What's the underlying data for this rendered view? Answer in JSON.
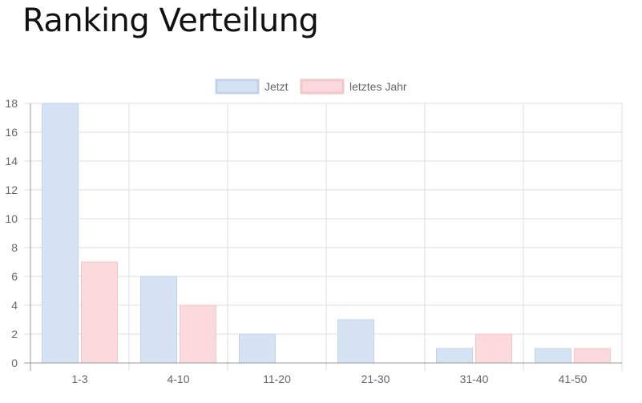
{
  "page": {
    "title": "Ranking Verteilung"
  },
  "chart_data": {
    "type": "bar",
    "categories": [
      "1-3",
      "4-10",
      "11-20",
      "21-30",
      "31-40",
      "41-50"
    ],
    "series": [
      {
        "name": "Jetzt",
        "values": [
          18,
          6,
          2,
          3,
          1,
          1
        ],
        "fill": "#d6e3f5",
        "stroke": "#c4d3ec"
      },
      {
        "name": "letztes Jahr",
        "values": [
          7,
          4,
          0,
          0,
          2,
          1
        ],
        "fill": "#fbd9dc",
        "stroke": "#f2c6ca"
      }
    ],
    "ylim": [
      0,
      18
    ],
    "yticks": [
      "0",
      "2",
      "4",
      "6",
      "8",
      "10",
      "12",
      "14",
      "16",
      "18"
    ],
    "grid": true,
    "legend_position": "top"
  }
}
